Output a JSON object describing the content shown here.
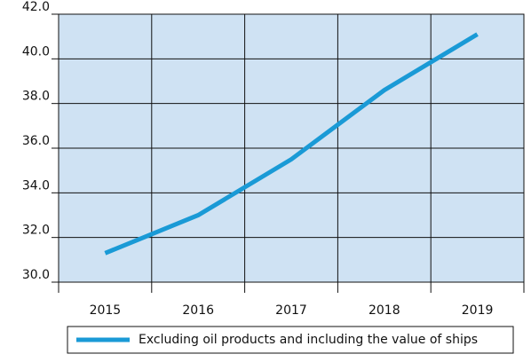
{
  "chart_data": {
    "type": "line",
    "categories": [
      "2015",
      "2016",
      "2017",
      "2018",
      "2019"
    ],
    "series": [
      {
        "name": "Excluding oil products and including the value of ships",
        "color": "#1a9ad6",
        "values": [
          31.3,
          33.0,
          35.5,
          38.6,
          41.1
        ]
      }
    ],
    "ylim": [
      30,
      42
    ],
    "yticks": [
      {
        "value": 30,
        "label": "30.0"
      },
      {
        "value": 32,
        "label": "32.0"
      },
      {
        "value": 34,
        "label": "34.0"
      },
      {
        "value": 36,
        "label": "36.0"
      },
      {
        "value": 38,
        "label": "38.0"
      },
      {
        "value": 40,
        "label": "40.0"
      },
      {
        "value": 42,
        "label": "42.0"
      }
    ],
    "grid": true,
    "background": "#cfe2f3",
    "legend": "bottom"
  }
}
